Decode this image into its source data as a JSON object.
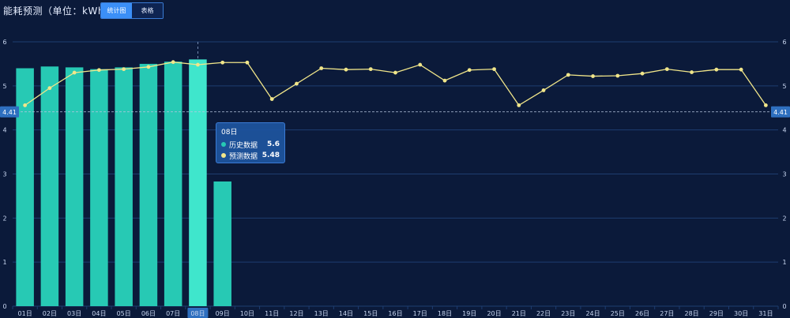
{
  "header": {
    "title": "能耗预测（单位：kWh）",
    "view_toggle": [
      {
        "label": "统计图",
        "active": true
      },
      {
        "label": "表格",
        "active": false
      }
    ]
  },
  "colors": {
    "background": "#0b1a3a",
    "bar": "#27c9b4",
    "bar_highlight": "#3fe6cc",
    "line": "#f1e68a",
    "grid": "#1e3d70",
    "markline": "#b8c6e0",
    "label_bg": "#2e6fbf"
  },
  "chart_data": {
    "type": "bar",
    "categories": [
      "01日",
      "02日",
      "03日",
      "04日",
      "05日",
      "06日",
      "07日",
      "08日",
      "09日",
      "10日",
      "11日",
      "12日",
      "13日",
      "14日",
      "15日",
      "16日",
      "17日",
      "18日",
      "19日",
      "20日",
      "21日",
      "22日",
      "23日",
      "24日",
      "25日",
      "26日",
      "27日",
      "28日",
      "29日",
      "30日",
      "31日"
    ],
    "series": [
      {
        "name": "历史数据",
        "kind": "bar",
        "values": [
          5.4,
          5.44,
          5.42,
          5.38,
          5.42,
          5.5,
          5.55,
          5.6,
          2.83,
          null,
          null,
          null,
          null,
          null,
          null,
          null,
          null,
          null,
          null,
          null,
          null,
          null,
          null,
          null,
          null,
          null,
          null,
          null,
          null,
          null,
          null
        ]
      },
      {
        "name": "预测数据",
        "kind": "line",
        "values": [
          4.56,
          4.95,
          5.3,
          5.36,
          5.38,
          5.43,
          5.54,
          5.48,
          5.53,
          5.53,
          4.7,
          5.05,
          5.4,
          5.37,
          5.38,
          5.3,
          5.48,
          5.12,
          5.36,
          5.38,
          4.56,
          4.9,
          5.25,
          5.22,
          5.23,
          5.28,
          5.38,
          5.31,
          5.37,
          5.37,
          4.56
        ]
      }
    ],
    "ylim": [
      0,
      6
    ],
    "yticks": [
      "0",
      "1",
      "2",
      "3",
      "4",
      "5",
      "6"
    ],
    "markline": {
      "value": 4.41,
      "label": "4.41"
    },
    "grid": true,
    "tooltip": {
      "category": "08日",
      "rows": [
        {
          "name": "历史数据",
          "value": "5.6"
        },
        {
          "name": "预测数据",
          "value": "5.48"
        }
      ]
    },
    "highlight_index": 7
  }
}
